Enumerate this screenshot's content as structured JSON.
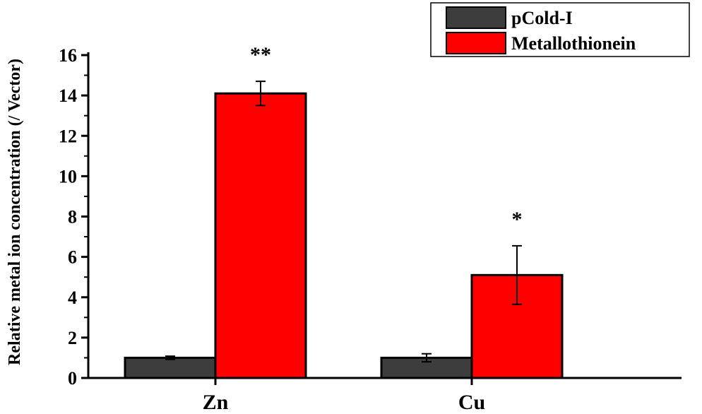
{
  "chart_data": {
    "type": "bar",
    "ylabel": "Relative metal ion concentration (/ Vector)",
    "categories": [
      "Zn",
      "Cu"
    ],
    "ylim": [
      0,
      16
    ],
    "yticks": [
      0,
      2,
      4,
      6,
      8,
      10,
      12,
      14,
      16
    ],
    "grid": false,
    "legend_position": "top-right",
    "series": [
      {
        "name": "pCold-I",
        "color": "#3d3d3d",
        "values": [
          1.0,
          1.0
        ],
        "errors": [
          0.08,
          0.2
        ]
      },
      {
        "name": "Metallothionein",
        "color": "#ff0000",
        "values": [
          14.1,
          5.1
        ],
        "errors": [
          0.6,
          1.45
        ]
      }
    ],
    "annotations": [
      {
        "category": "Zn",
        "series": "Metallothionein",
        "text": "**"
      },
      {
        "category": "Cu",
        "series": "Metallothionein",
        "text": "*"
      }
    ]
  }
}
